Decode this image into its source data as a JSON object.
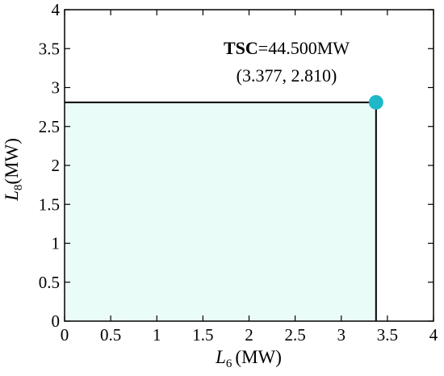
{
  "chart_data": {
    "type": "area",
    "title": "",
    "xlabel": {
      "symbol": "L",
      "subscript": "6",
      "unit": "(MW)"
    },
    "ylabel": {
      "symbol": "L",
      "subscript": "8",
      "unit": "(MW)"
    },
    "xlim": [
      0,
      4
    ],
    "ylim": [
      0,
      4
    ],
    "xticks": [
      "0",
      "0.5",
      "1",
      "1.5",
      "2",
      "2.5",
      "3",
      "3.5",
      "4"
    ],
    "yticks": [
      "0",
      "0.5",
      "1",
      "1.5",
      "2",
      "2.5",
      "3",
      "3.5",
      "4"
    ],
    "grid": false,
    "feasible_region": {
      "x": [
        0,
        3.377
      ],
      "y": [
        0,
        2.81
      ],
      "fill": "#eafcf8"
    },
    "point": {
      "x": 3.377,
      "y": 2.81,
      "color": "#1fb8c9"
    },
    "annotation": {
      "label_bold": "TSC",
      "label_rest": "=44.500MW",
      "coords": "(3.377, 2.810)"
    },
    "colors": {
      "axes": "#000000",
      "fill": "#eafcf8",
      "marker": "#1fb8c9"
    }
  }
}
